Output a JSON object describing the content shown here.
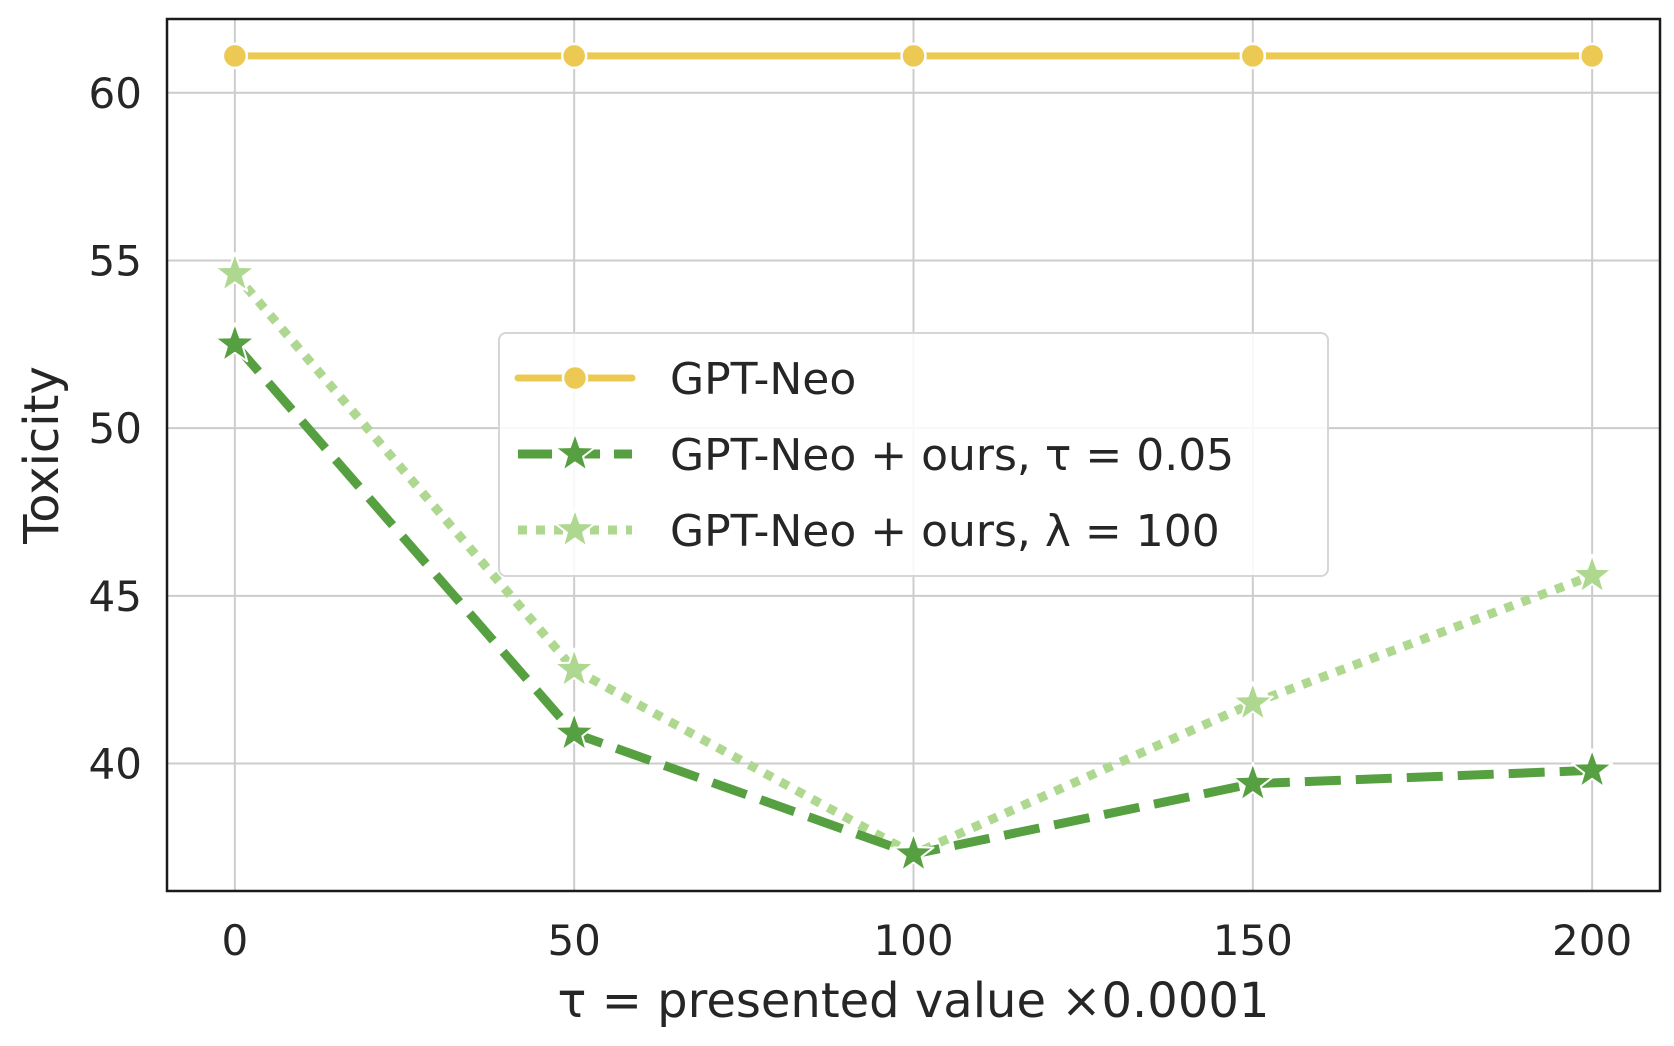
{
  "chart_data": {
    "type": "line",
    "xlabel": "τ =  presented value ×0.0001",
    "ylabel": "Toxicity",
    "x": [
      0,
      50,
      100,
      150,
      200
    ],
    "xticks": [
      "0",
      "50",
      "100",
      "150",
      "200"
    ],
    "yticks": [
      "40",
      "45",
      "50",
      "55",
      "60"
    ],
    "xlim": [
      -10,
      210
    ],
    "ylim": [
      36.2,
      62.2
    ],
    "grid": true,
    "legend_position": "center",
    "series": [
      {
        "name": "GPT-Neo",
        "values": [
          61.1,
          61.1,
          61.1,
          61.1,
          61.1
        ],
        "color": "#ecc953",
        "line_style": "solid",
        "marker": "circle"
      },
      {
        "name": "GPT-Neo + ours, τ = 0.05",
        "values": [
          52.5,
          40.9,
          37.3,
          39.4,
          39.8
        ],
        "color": "#57a042",
        "line_style": "dashed",
        "marker": "star"
      },
      {
        "name": "GPT-Neo + ours, λ = 100",
        "values": [
          54.6,
          42.8,
          37.3,
          41.8,
          45.6
        ],
        "color": "#aed890",
        "line_style": "dotted",
        "marker": "star"
      }
    ]
  }
}
